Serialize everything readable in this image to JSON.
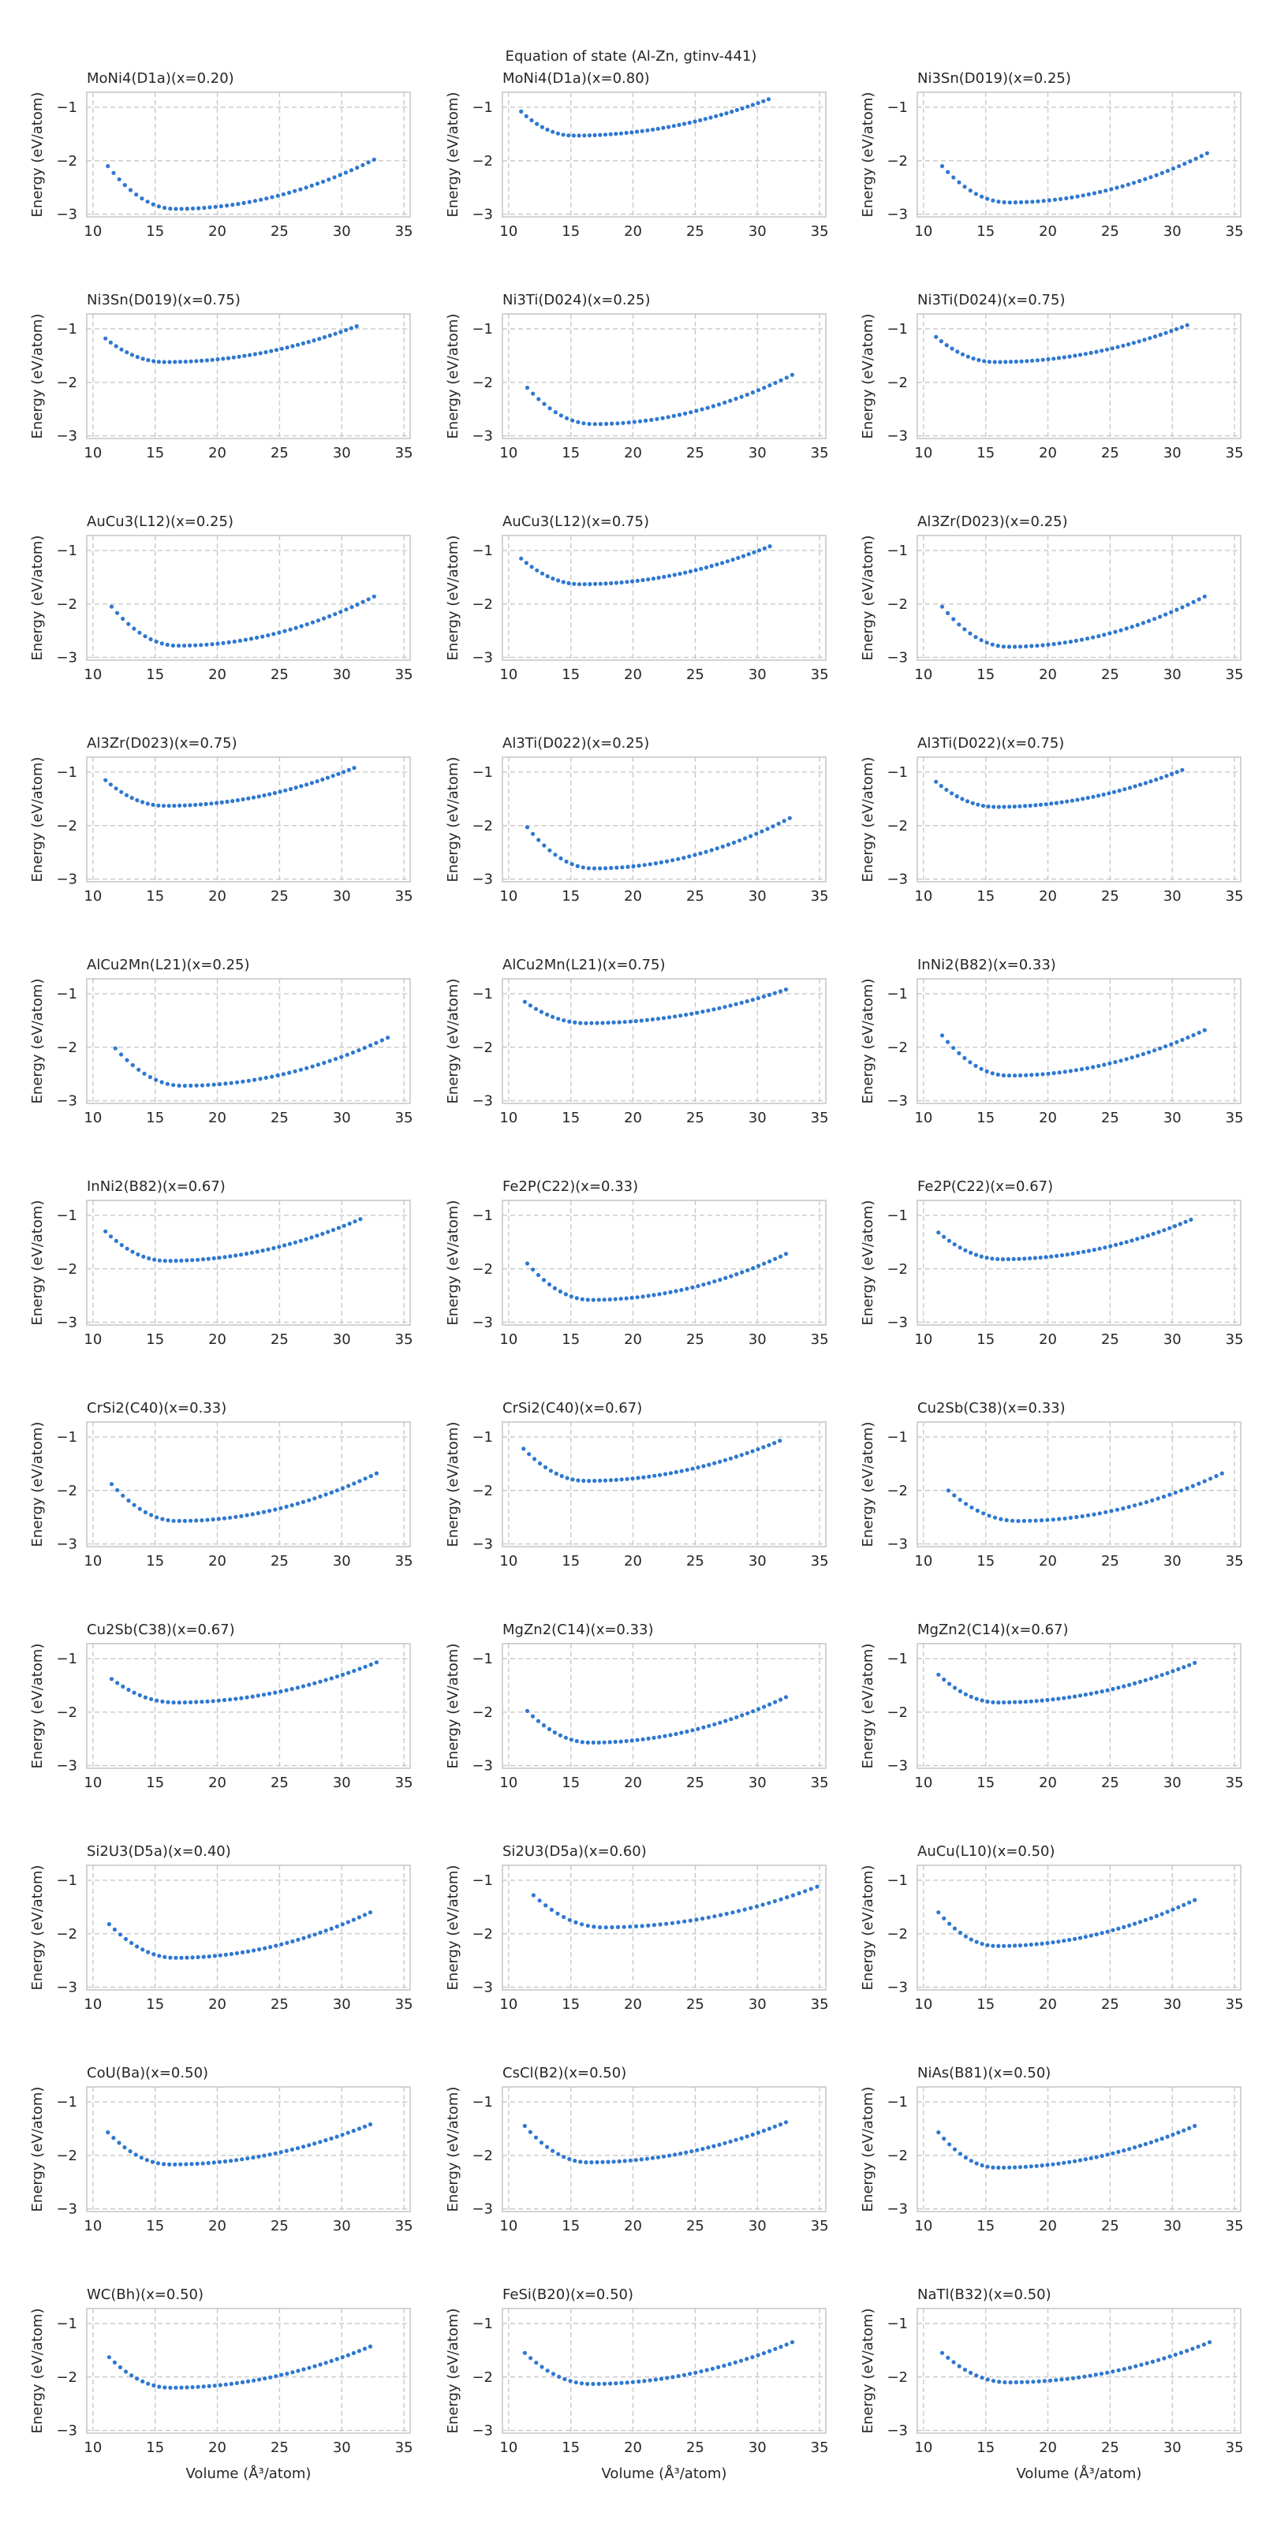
{
  "figure": {
    "suptitle": "Equation of state (Al-Zn, gtinv-441)",
    "xlabel": "Volume (Å³/atom)",
    "ylabel": "Energy (eV/atom)",
    "colors": {
      "marker": "#2e78d0",
      "grid": "#c8c8c8",
      "frame": "#c8c8c8"
    }
  },
  "chart_data": [
    {
      "type": "scatter",
      "title": "MoNi4(D1a)(x=0.20)",
      "xlim": [
        9.5,
        35.5
      ],
      "ylim": [
        -3.05,
        -0.72
      ],
      "xticks": [
        10,
        15,
        20,
        25,
        30,
        35
      ],
      "yticks": [
        -3,
        -2,
        -1
      ],
      "curve": {
        "vmin": 11.2,
        "vmax": 32.6,
        "v0": 16.6,
        "e0": -2.9,
        "estart": -2.1,
        "eend": -1.98
      }
    },
    {
      "type": "scatter",
      "title": "MoNi4(D1a)(x=0.80)",
      "xlim": [
        9.5,
        35.5
      ],
      "ylim": [
        -3.05,
        -0.72
      ],
      "xticks": [
        10,
        15,
        20,
        25,
        30,
        35
      ],
      "yticks": [
        -3,
        -2,
        -1
      ],
      "curve": {
        "vmin": 11.0,
        "vmax": 30.9,
        "v0": 15.2,
        "e0": -1.53,
        "estart": -1.08,
        "eend": -0.85
      }
    },
    {
      "type": "scatter",
      "title": "Ni3Sn(D019)(x=0.25)",
      "xlim": [
        9.5,
        35.5
      ],
      "ylim": [
        -3.05,
        -0.72
      ],
      "xticks": [
        10,
        15,
        20,
        25,
        30,
        35
      ],
      "yticks": [
        -3,
        -2,
        -1
      ],
      "curve": {
        "vmin": 11.5,
        "vmax": 32.8,
        "v0": 16.8,
        "e0": -2.78,
        "estart": -2.1,
        "eend": -1.86
      }
    },
    {
      "type": "scatter",
      "title": "Ni3Sn(D019)(x=0.75)",
      "xlim": [
        9.5,
        35.5
      ],
      "ylim": [
        -3.05,
        -0.72
      ],
      "xticks": [
        10,
        15,
        20,
        25,
        30,
        35
      ],
      "yticks": [
        -3,
        -2,
        -1
      ],
      "curve": {
        "vmin": 11.0,
        "vmax": 31.2,
        "v0": 15.8,
        "e0": -1.62,
        "estart": -1.18,
        "eend": -0.95
      }
    },
    {
      "type": "scatter",
      "title": "Ni3Ti(D024)(x=0.25)",
      "xlim": [
        9.5,
        35.5
      ],
      "ylim": [
        -3.05,
        -0.72
      ],
      "xticks": [
        10,
        15,
        20,
        25,
        30,
        35
      ],
      "yticks": [
        -3,
        -2,
        -1
      ],
      "curve": {
        "vmin": 11.5,
        "vmax": 32.8,
        "v0": 16.8,
        "e0": -2.78,
        "estart": -2.1,
        "eend": -1.86
      }
    },
    {
      "type": "scatter",
      "title": "Ni3Ti(D024)(x=0.75)",
      "xlim": [
        9.5,
        35.5
      ],
      "ylim": [
        -3.05,
        -0.72
      ],
      "xticks": [
        10,
        15,
        20,
        25,
        30,
        35
      ],
      "yticks": [
        -3,
        -2,
        -1
      ],
      "curve": {
        "vmin": 11.0,
        "vmax": 31.2,
        "v0": 15.8,
        "e0": -1.62,
        "estart": -1.15,
        "eend": -0.93
      }
    },
    {
      "type": "scatter",
      "title": "AuCu3(L12)(x=0.25)",
      "xlim": [
        9.5,
        35.5
      ],
      "ylim": [
        -3.05,
        -0.72
      ],
      "xticks": [
        10,
        15,
        20,
        25,
        30,
        35
      ],
      "yticks": [
        -3,
        -2,
        -1
      ],
      "curve": {
        "vmin": 11.5,
        "vmax": 32.6,
        "v0": 16.8,
        "e0": -2.78,
        "estart": -2.05,
        "eend": -1.86
      }
    },
    {
      "type": "scatter",
      "title": "AuCu3(L12)(x=0.75)",
      "xlim": [
        9.5,
        35.5
      ],
      "ylim": [
        -3.05,
        -0.72
      ],
      "xticks": [
        10,
        15,
        20,
        25,
        30,
        35
      ],
      "yticks": [
        -3,
        -2,
        -1
      ],
      "curve": {
        "vmin": 11.0,
        "vmax": 31.0,
        "v0": 15.8,
        "e0": -1.63,
        "estart": -1.15,
        "eend": -0.92
      }
    },
    {
      "type": "scatter",
      "title": "Al3Zr(D023)(x=0.25)",
      "xlim": [
        9.5,
        35.5
      ],
      "ylim": [
        -3.05,
        -0.72
      ],
      "xticks": [
        10,
        15,
        20,
        25,
        30,
        35
      ],
      "yticks": [
        -3,
        -2,
        -1
      ],
      "curve": {
        "vmin": 11.5,
        "vmax": 32.6,
        "v0": 16.8,
        "e0": -2.8,
        "estart": -2.05,
        "eend": -1.86
      }
    },
    {
      "type": "scatter",
      "title": "Al3Zr(D023)(x=0.75)",
      "xlim": [
        9.5,
        35.5
      ],
      "ylim": [
        -3.05,
        -0.72
      ],
      "xticks": [
        10,
        15,
        20,
        25,
        30,
        35
      ],
      "yticks": [
        -3,
        -2,
        -1
      ],
      "curve": {
        "vmin": 11.0,
        "vmax": 31.0,
        "v0": 15.8,
        "e0": -1.63,
        "estart": -1.15,
        "eend": -0.92
      }
    },
    {
      "type": "scatter",
      "title": "Al3Ti(D022)(x=0.25)",
      "xlim": [
        9.5,
        35.5
      ],
      "ylim": [
        -3.05,
        -0.72
      ],
      "xticks": [
        10,
        15,
        20,
        25,
        30,
        35
      ],
      "yticks": [
        -3,
        -2,
        -1
      ],
      "curve": {
        "vmin": 11.5,
        "vmax": 32.6,
        "v0": 16.8,
        "e0": -2.8,
        "estart": -2.03,
        "eend": -1.86
      }
    },
    {
      "type": "scatter",
      "title": "Al3Ti(D022)(x=0.75)",
      "xlim": [
        9.5,
        35.5
      ],
      "ylim": [
        -3.05,
        -0.72
      ],
      "xticks": [
        10,
        15,
        20,
        25,
        30,
        35
      ],
      "yticks": [
        -3,
        -2,
        -1
      ],
      "curve": {
        "vmin": 11.0,
        "vmax": 30.8,
        "v0": 15.8,
        "e0": -1.65,
        "estart": -1.18,
        "eend": -0.96
      }
    },
    {
      "type": "scatter",
      "title": "AlCu2Mn(L21)(x=0.25)",
      "xlim": [
        9.5,
        35.5
      ],
      "ylim": [
        -3.05,
        -0.72
      ],
      "xticks": [
        10,
        15,
        20,
        25,
        30,
        35
      ],
      "yticks": [
        -3,
        -2,
        -1
      ],
      "curve": {
        "vmin": 11.8,
        "vmax": 33.7,
        "v0": 17.2,
        "e0": -2.72,
        "estart": -2.02,
        "eend": -1.82
      }
    },
    {
      "type": "scatter",
      "title": "AlCu2Mn(L21)(x=0.75)",
      "xlim": [
        9.5,
        35.5
      ],
      "ylim": [
        -3.05,
        -0.72
      ],
      "xticks": [
        10,
        15,
        20,
        25,
        30,
        35
      ],
      "yticks": [
        -3,
        -2,
        -1
      ],
      "curve": {
        "vmin": 11.3,
        "vmax": 32.3,
        "v0": 16.2,
        "e0": -1.55,
        "estart": -1.15,
        "eend": -0.92
      }
    },
    {
      "type": "scatter",
      "title": "InNi2(B82)(x=0.33)",
      "xlim": [
        9.5,
        35.5
      ],
      "ylim": [
        -3.05,
        -0.72
      ],
      "xticks": [
        10,
        15,
        20,
        25,
        30,
        35
      ],
      "yticks": [
        -3,
        -2,
        -1
      ],
      "curve": {
        "vmin": 11.5,
        "vmax": 32.6,
        "v0": 16.8,
        "e0": -2.53,
        "estart": -1.78,
        "eend": -1.68
      }
    },
    {
      "type": "scatter",
      "title": "InNi2(B82)(x=0.67)",
      "xlim": [
        9.5,
        35.5
      ],
      "ylim": [
        -3.05,
        -0.72
      ],
      "xticks": [
        10,
        15,
        20,
        25,
        30,
        35
      ],
      "yticks": [
        -3,
        -2,
        -1
      ],
      "curve": {
        "vmin": 11.0,
        "vmax": 31.5,
        "v0": 15.9,
        "e0": -1.85,
        "estart": -1.3,
        "eend": -1.07
      }
    },
    {
      "type": "scatter",
      "title": "Fe2P(C22)(x=0.33)",
      "xlim": [
        9.5,
        35.5
      ],
      "ylim": [
        -3.05,
        -0.72
      ],
      "xticks": [
        10,
        15,
        20,
        25,
        30,
        35
      ],
      "yticks": [
        -3,
        -2,
        -1
      ],
      "curve": {
        "vmin": 11.5,
        "vmax": 32.3,
        "v0": 16.6,
        "e0": -2.58,
        "estart": -1.9,
        "eend": -1.72
      }
    },
    {
      "type": "scatter",
      "title": "Fe2P(C22)(x=0.67)",
      "xlim": [
        9.5,
        35.5
      ],
      "ylim": [
        -3.05,
        -0.72
      ],
      "xticks": [
        10,
        15,
        20,
        25,
        30,
        35
      ],
      "yticks": [
        -3,
        -2,
        -1
      ],
      "curve": {
        "vmin": 11.2,
        "vmax": 31.5,
        "v0": 16.3,
        "e0": -1.82,
        "estart": -1.32,
        "eend": -1.08
      }
    },
    {
      "type": "scatter",
      "title": "CrSi2(C40)(x=0.33)",
      "xlim": [
        9.5,
        35.5
      ],
      "ylim": [
        -3.05,
        -0.72
      ],
      "xticks": [
        10,
        15,
        20,
        25,
        30,
        35
      ],
      "yticks": [
        -3,
        -2,
        -1
      ],
      "curve": {
        "vmin": 11.5,
        "vmax": 32.8,
        "v0": 16.8,
        "e0": -2.57,
        "estart": -1.88,
        "eend": -1.68
      }
    },
    {
      "type": "scatter",
      "title": "CrSi2(C40)(x=0.67)",
      "xlim": [
        9.5,
        35.5
      ],
      "ylim": [
        -3.05,
        -0.72
      ],
      "xticks": [
        10,
        15,
        20,
        25,
        30,
        35
      ],
      "yticks": [
        -3,
        -2,
        -1
      ],
      "curve": {
        "vmin": 11.2,
        "vmax": 31.8,
        "v0": 16.2,
        "e0": -1.82,
        "estart": -1.22,
        "eend": -1.07
      }
    },
    {
      "type": "scatter",
      "title": "Cu2Sb(C38)(x=0.33)",
      "xlim": [
        9.5,
        35.5
      ],
      "ylim": [
        -3.05,
        -0.72
      ],
      "xticks": [
        10,
        15,
        20,
        25,
        30,
        35
      ],
      "yticks": [
        -3,
        -2,
        -1
      ],
      "curve": {
        "vmin": 12.0,
        "vmax": 34.0,
        "v0": 17.6,
        "e0": -2.57,
        "estart": -2.0,
        "eend": -1.68
      }
    },
    {
      "type": "scatter",
      "title": "Cu2Sb(C38)(x=0.67)",
      "xlim": [
        9.5,
        35.5
      ],
      "ylim": [
        -3.05,
        -0.72
      ],
      "xticks": [
        10,
        15,
        20,
        25,
        30,
        35
      ],
      "yticks": [
        -3,
        -2,
        -1
      ],
      "curve": {
        "vmin": 11.5,
        "vmax": 32.8,
        "v0": 16.6,
        "e0": -1.82,
        "estart": -1.38,
        "eend": -1.07
      }
    },
    {
      "type": "scatter",
      "title": "MgZn2(C14)(x=0.33)",
      "xlim": [
        9.5,
        35.5
      ],
      "ylim": [
        -3.05,
        -0.72
      ],
      "xticks": [
        10,
        15,
        20,
        25,
        30,
        35
      ],
      "yticks": [
        -3,
        -2,
        -1
      ],
      "curve": {
        "vmin": 11.5,
        "vmax": 32.3,
        "v0": 16.6,
        "e0": -2.57,
        "estart": -1.98,
        "eend": -1.72
      }
    },
    {
      "type": "scatter",
      "title": "MgZn2(C14)(x=0.67)",
      "xlim": [
        9.5,
        35.5
      ],
      "ylim": [
        -3.05,
        -0.72
      ],
      "xticks": [
        10,
        15,
        20,
        25,
        30,
        35
      ],
      "yticks": [
        -3,
        -2,
        -1
      ],
      "curve": {
        "vmin": 11.2,
        "vmax": 31.8,
        "v0": 16.0,
        "e0": -1.82,
        "estart": -1.3,
        "eend": -1.08
      }
    },
    {
      "type": "scatter",
      "title": "Si2U3(D5a)(x=0.40)",
      "xlim": [
        9.5,
        35.5
      ],
      "ylim": [
        -3.05,
        -0.72
      ],
      "xticks": [
        10,
        15,
        20,
        25,
        30,
        35
      ],
      "yticks": [
        -3,
        -2,
        -1
      ],
      "curve": {
        "vmin": 11.3,
        "vmax": 32.3,
        "v0": 16.6,
        "e0": -2.45,
        "estart": -1.82,
        "eend": -1.6
      }
    },
    {
      "type": "scatter",
      "title": "Si2U3(D5a)(x=0.60)",
      "xlim": [
        9.5,
        35.5
      ],
      "ylim": [
        -3.05,
        -0.72
      ],
      "xticks": [
        10,
        15,
        20,
        25,
        30,
        35
      ],
      "yticks": [
        -3,
        -2,
        -1
      ],
      "curve": {
        "vmin": 12.0,
        "vmax": 34.8,
        "v0": 17.6,
        "e0": -1.88,
        "estart": -1.28,
        "eend": -1.12
      }
    },
    {
      "type": "scatter",
      "title": "AuCu(L10)(x=0.50)",
      "xlim": [
        9.5,
        35.5
      ],
      "ylim": [
        -3.05,
        -0.72
      ],
      "xticks": [
        10,
        15,
        20,
        25,
        30,
        35
      ],
      "yticks": [
        -3,
        -2,
        -1
      ],
      "curve": {
        "vmin": 11.2,
        "vmax": 31.8,
        "v0": 15.9,
        "e0": -2.23,
        "estart": -1.6,
        "eend": -1.37
      }
    },
    {
      "type": "scatter",
      "title": "CoU(Ba)(x=0.50)",
      "xlim": [
        9.5,
        35.5
      ],
      "ylim": [
        -3.05,
        -0.72
      ],
      "xticks": [
        10,
        15,
        20,
        25,
        30,
        35
      ],
      "yticks": [
        -3,
        -2,
        -1
      ],
      "curve": {
        "vmin": 11.2,
        "vmax": 32.3,
        "v0": 16.2,
        "e0": -2.17,
        "estart": -1.57,
        "eend": -1.42
      }
    },
    {
      "type": "scatter",
      "title": "CsCl(B2)(x=0.50)",
      "xlim": [
        9.5,
        35.5
      ],
      "ylim": [
        -3.05,
        -0.72
      ],
      "xticks": [
        10,
        15,
        20,
        25,
        30,
        35
      ],
      "yticks": [
        -3,
        -2,
        -1
      ],
      "curve": {
        "vmin": 11.3,
        "vmax": 32.3,
        "v0": 16.4,
        "e0": -2.13,
        "estart": -1.45,
        "eend": -1.38
      }
    },
    {
      "type": "scatter",
      "title": "NiAs(B81)(x=0.50)",
      "xlim": [
        9.5,
        35.5
      ],
      "ylim": [
        -3.05,
        -0.72
      ],
      "xticks": [
        10,
        15,
        20,
        25,
        30,
        35
      ],
      "yticks": [
        -3,
        -2,
        -1
      ],
      "curve": {
        "vmin": 11.2,
        "vmax": 31.8,
        "v0": 15.9,
        "e0": -2.23,
        "estart": -1.57,
        "eend": -1.45
      }
    },
    {
      "type": "scatter",
      "title": "WC(Bh)(x=0.50)",
      "xlim": [
        9.5,
        35.5
      ],
      "ylim": [
        -3.05,
        -0.72
      ],
      "xticks": [
        10,
        15,
        20,
        25,
        30,
        35
      ],
      "yticks": [
        -3,
        -2,
        -1
      ],
      "curve": {
        "vmin": 11.3,
        "vmax": 32.3,
        "v0": 16.2,
        "e0": -2.2,
        "estart": -1.63,
        "eend": -1.43
      }
    },
    {
      "type": "scatter",
      "title": "FeSi(B20)(x=0.50)",
      "xlim": [
        9.5,
        35.5
      ],
      "ylim": [
        -3.05,
        -0.72
      ],
      "xticks": [
        10,
        15,
        20,
        25,
        30,
        35
      ],
      "yticks": [
        -3,
        -2,
        -1
      ],
      "curve": {
        "vmin": 11.3,
        "vmax": 32.8,
        "v0": 16.6,
        "e0": -2.13,
        "estart": -1.55,
        "eend": -1.35
      }
    },
    {
      "type": "scatter",
      "title": "NaTl(B32)(x=0.50)",
      "xlim": [
        9.5,
        35.5
      ],
      "ylim": [
        -3.05,
        -0.72
      ],
      "xticks": [
        10,
        15,
        20,
        25,
        30,
        35
      ],
      "yticks": [
        -3,
        -2,
        -1
      ],
      "curve": {
        "vmin": 11.5,
        "vmax": 33.0,
        "v0": 16.8,
        "e0": -2.1,
        "estart": -1.55,
        "eend": -1.35
      }
    }
  ]
}
